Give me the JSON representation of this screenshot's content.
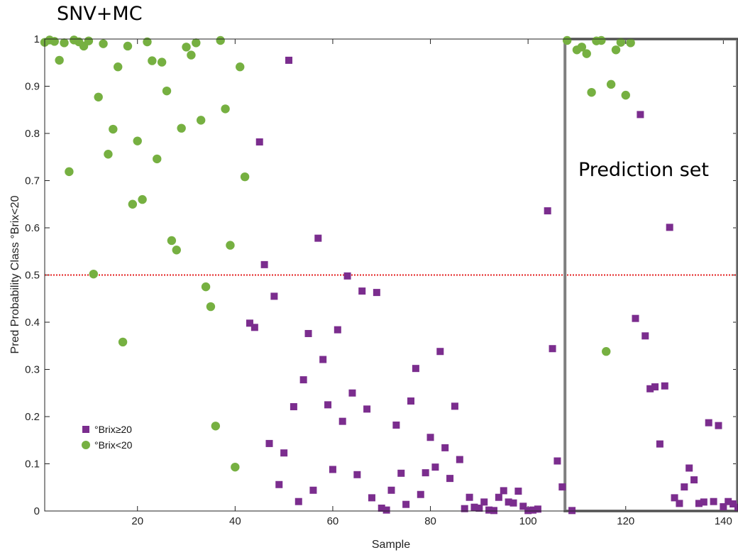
{
  "chart_data": {
    "type": "scatter",
    "title": "SNV+MC",
    "xlabel": "Sample",
    "ylabel": "Pred Probability Class °Brix<20",
    "xlim": [
      1,
      143
    ],
    "ylim": [
      0,
      1
    ],
    "xticks": [
      20,
      40,
      60,
      80,
      100,
      120,
      140
    ],
    "yticks": [
      0,
      0.1,
      0.2,
      0.3,
      0.4,
      0.5,
      0.6,
      0.7,
      0.8,
      0.9,
      1
    ],
    "threshold": 0.5,
    "threshold_color": "#e32020",
    "box_color": "#7f7f7f",
    "prediction_box": {
      "x_from": 108,
      "x_to": 143,
      "label": "Prediction set"
    },
    "legend_position": "bottom-left",
    "series": [
      {
        "name": "°Brix≥20",
        "marker": "square",
        "color": "#7b2d8e",
        "points": [
          [
            43,
            0.398
          ],
          [
            44,
            0.389
          ],
          [
            45,
            0.782
          ],
          [
            46,
            0.522
          ],
          [
            47,
            0.143
          ],
          [
            48,
            0.455
          ],
          [
            49,
            0.056
          ],
          [
            50,
            0.123
          ],
          [
            51,
            0.955
          ],
          [
            52,
            0.221
          ],
          [
            53,
            0.02
          ],
          [
            54,
            0.278
          ],
          [
            55,
            0.376
          ],
          [
            56,
            0.044
          ],
          [
            57,
            0.578
          ],
          [
            58,
            0.321
          ],
          [
            59,
            0.225
          ],
          [
            60,
            0.088
          ],
          [
            61,
            0.384
          ],
          [
            62,
            0.19
          ],
          [
            63,
            0.498
          ],
          [
            64,
            0.25
          ],
          [
            65,
            0.077
          ],
          [
            66,
            0.466
          ],
          [
            67,
            0.216
          ],
          [
            68,
            0.028
          ],
          [
            69,
            0.463
          ],
          [
            70,
            0.006
          ],
          [
            71,
            0.002
          ],
          [
            72,
            0.044
          ],
          [
            73,
            0.182
          ],
          [
            74,
            0.08
          ],
          [
            75,
            0.014
          ],
          [
            76,
            0.233
          ],
          [
            77,
            0.302
          ],
          [
            78,
            0.035
          ],
          [
            79,
            0.081
          ],
          [
            80,
            0.156
          ],
          [
            81,
            0.093
          ],
          [
            82,
            0.338
          ],
          [
            83,
            0.134
          ],
          [
            84,
            0.069
          ],
          [
            85,
            0.222
          ],
          [
            86,
            0.109
          ],
          [
            87,
            0.005
          ],
          [
            88,
            0.029
          ],
          [
            89,
            0.008
          ],
          [
            90,
            0.006
          ],
          [
            91,
            0.019
          ],
          [
            92,
            0.002
          ],
          [
            93,
            0.001
          ],
          [
            94,
            0.029
          ],
          [
            95,
            0.043
          ],
          [
            96,
            0.019
          ],
          [
            97,
            0.017
          ],
          [
            98,
            0.042
          ],
          [
            99,
            0.01
          ],
          [
            100,
            0.001
          ],
          [
            101,
            0.002
          ],
          [
            102,
            0.004
          ],
          [
            104,
            0.636
          ],
          [
            105,
            0.344
          ],
          [
            106,
            0.106
          ],
          [
            107,
            0.051
          ],
          [
            109,
            0.001
          ],
          [
            123,
            0.84
          ],
          [
            122,
            0.408
          ],
          [
            124,
            0.371
          ],
          [
            125,
            0.259
          ],
          [
            126,
            0.263
          ],
          [
            127,
            0.142
          ],
          [
            128,
            0.265
          ],
          [
            129,
            0.601
          ],
          [
            130,
            0.028
          ],
          [
            131,
            0.016
          ],
          [
            132,
            0.051
          ],
          [
            133,
            0.091
          ],
          [
            134,
            0.066
          ],
          [
            135,
            0.016
          ],
          [
            136,
            0.019
          ],
          [
            137,
            0.187
          ],
          [
            138,
            0.02
          ],
          [
            139,
            0.181
          ],
          [
            140,
            0.009
          ],
          [
            141,
            0.02
          ],
          [
            142,
            0.015
          ],
          [
            143,
            0.008
          ]
        ]
      },
      {
        "name": "°Brix<20",
        "marker": "circle",
        "color": "#76b041",
        "points": [
          [
            1,
            0.993
          ],
          [
            2,
            0.998
          ],
          [
            3,
            0.995
          ],
          [
            4,
            0.955
          ],
          [
            5,
            0.992
          ],
          [
            6,
            0.719
          ],
          [
            7,
            0.998
          ],
          [
            8,
            0.994
          ],
          [
            9,
            0.985
          ],
          [
            10,
            0.996
          ],
          [
            11,
            0.502
          ],
          [
            12,
            0.877
          ],
          [
            13,
            0.99
          ],
          [
            14,
            0.756
          ],
          [
            15,
            0.809
          ],
          [
            16,
            0.941
          ],
          [
            17,
            0.358
          ],
          [
            18,
            0.985
          ],
          [
            19,
            0.65
          ],
          [
            20,
            0.784
          ],
          [
            21,
            0.66
          ],
          [
            22,
            0.994
          ],
          [
            23,
            0.954
          ],
          [
            24,
            0.746
          ],
          [
            25,
            0.951
          ],
          [
            26,
            0.89
          ],
          [
            27,
            0.573
          ],
          [
            28,
            0.553
          ],
          [
            29,
            0.811
          ],
          [
            30,
            0.983
          ],
          [
            31,
            0.966
          ],
          [
            32,
            0.992
          ],
          [
            33,
            0.828
          ],
          [
            34,
            0.475
          ],
          [
            35,
            0.433
          ],
          [
            36,
            0.18
          ],
          [
            37,
            0.997
          ],
          [
            38,
            0.852
          ],
          [
            39,
            0.563
          ],
          [
            40,
            0.093
          ],
          [
            41,
            0.941
          ],
          [
            42,
            0.708
          ],
          [
            108,
            0.997
          ],
          [
            110,
            0.977
          ],
          [
            111,
            0.983
          ],
          [
            112,
            0.969
          ],
          [
            113,
            0.887
          ],
          [
            114,
            0.996
          ],
          [
            115,
            0.997
          ],
          [
            116,
            0.338
          ],
          [
            117,
            0.904
          ],
          [
            118,
            0.977
          ],
          [
            119,
            0.993
          ],
          [
            120,
            0.881
          ],
          [
            121,
            0.992
          ]
        ]
      }
    ]
  }
}
